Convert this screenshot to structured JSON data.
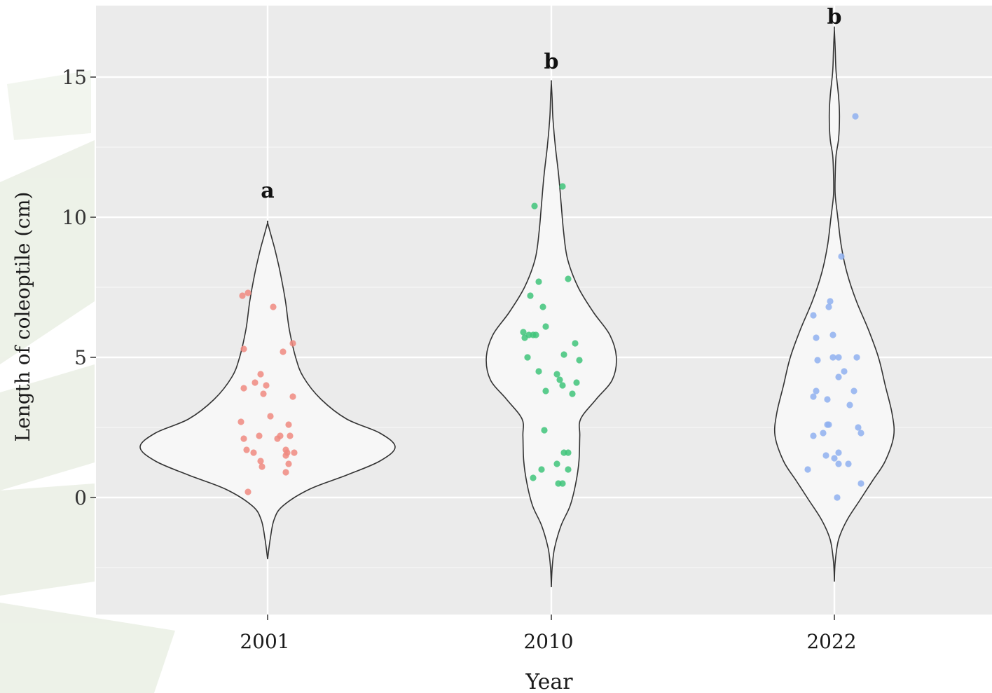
{
  "chart_data": {
    "type": "violin",
    "xlabel": "Year",
    "ylabel": "Length of coleoptile (cm)",
    "categories": [
      "2001",
      "2010",
      "2022"
    ],
    "yticks": [
      0,
      5,
      10,
      15
    ],
    "ylim": [
      -4.2,
      17.6
    ],
    "grid": true,
    "group_letters": [
      {
        "category": "2001",
        "label": "a",
        "y": 11.0
      },
      {
        "category": "2010",
        "label": "b",
        "y": 15.6
      },
      {
        "category": "2022",
        "label": "b",
        "y": 17.2
      }
    ],
    "colors": {
      "2001": "#f08a80",
      "2010": "#3fc47a",
      "2022": "#8fb0f0",
      "panel": "#ebebeb",
      "violin_fill": "#f7f7f7",
      "violin_line": "#333333",
      "grid": "#ffffff"
    },
    "violins": [
      {
        "category": "2001",
        "ymin": -2.2,
        "ymax": 9.8,
        "profile": [
          [
            -2.2,
            0.0
          ],
          [
            -1.5,
            0.02
          ],
          [
            -0.8,
            0.05
          ],
          [
            -0.3,
            0.12
          ],
          [
            0.3,
            0.33
          ],
          [
            0.8,
            0.62
          ],
          [
            1.3,
            0.88
          ],
          [
            1.8,
            1.0
          ],
          [
            2.3,
            0.88
          ],
          [
            2.8,
            0.62
          ],
          [
            3.5,
            0.42
          ],
          [
            4.3,
            0.28
          ],
          [
            5.0,
            0.22
          ],
          [
            6.0,
            0.17
          ],
          [
            7.0,
            0.14
          ],
          [
            8.0,
            0.1
          ],
          [
            8.8,
            0.06
          ],
          [
            9.3,
            0.03
          ],
          [
            9.8,
            0.0
          ]
        ]
      },
      {
        "category": "2010",
        "ymin": -3.2,
        "ymax": 14.8,
        "profile": [
          [
            -3.2,
            0.0
          ],
          [
            -2.5,
            0.01
          ],
          [
            -1.8,
            0.04
          ],
          [
            -1.0,
            0.12
          ],
          [
            -0.3,
            0.23
          ],
          [
            0.5,
            0.3
          ],
          [
            1.3,
            0.34
          ],
          [
            2.2,
            0.35
          ],
          [
            2.8,
            0.36
          ],
          [
            3.5,
            0.55
          ],
          [
            4.2,
            0.75
          ],
          [
            5.0,
            0.8
          ],
          [
            5.8,
            0.72
          ],
          [
            6.6,
            0.52
          ],
          [
            7.5,
            0.33
          ],
          [
            8.5,
            0.2
          ],
          [
            9.5,
            0.15
          ],
          [
            10.5,
            0.12
          ],
          [
            11.5,
            0.09
          ],
          [
            12.5,
            0.05
          ],
          [
            13.5,
            0.02
          ],
          [
            14.2,
            0.01
          ],
          [
            14.8,
            0.0
          ]
        ]
      },
      {
        "category": "2022",
        "ymin": -3.0,
        "ymax": 16.7,
        "profile": [
          [
            -3.0,
            0.0
          ],
          [
            -2.3,
            0.01
          ],
          [
            -1.5,
            0.05
          ],
          [
            -0.8,
            0.15
          ],
          [
            -0.1,
            0.3
          ],
          [
            0.6,
            0.45
          ],
          [
            1.3,
            0.6
          ],
          [
            2.2,
            0.7
          ],
          [
            3.0,
            0.68
          ],
          [
            4.0,
            0.6
          ],
          [
            5.0,
            0.52
          ],
          [
            6.0,
            0.4
          ],
          [
            7.0,
            0.26
          ],
          [
            8.0,
            0.15
          ],
          [
            9.0,
            0.08
          ],
          [
            10.0,
            0.04
          ],
          [
            10.8,
            0.01
          ],
          [
            11.5,
            0.01
          ],
          [
            12.2,
            0.02
          ],
          [
            12.8,
            0.05
          ],
          [
            13.6,
            0.06
          ],
          [
            14.3,
            0.05
          ],
          [
            15.2,
            0.02
          ],
          [
            16.0,
            0.01
          ],
          [
            16.7,
            0.0
          ]
        ]
      }
    ],
    "points": [
      {
        "category": "2001",
        "data": [
          [
            -0.18,
            7.2
          ],
          [
            -0.14,
            7.3
          ],
          [
            0.04,
            6.8
          ],
          [
            0.18,
            5.5
          ],
          [
            0.11,
            5.2
          ],
          [
            -0.17,
            5.3
          ],
          [
            -0.17,
            3.9
          ],
          [
            -0.09,
            4.1
          ],
          [
            -0.05,
            4.4
          ],
          [
            -0.03,
            3.7
          ],
          [
            -0.01,
            4.0
          ],
          [
            0.18,
            3.6
          ],
          [
            0.02,
            2.9
          ],
          [
            -0.19,
            2.7
          ],
          [
            -0.17,
            2.1
          ],
          [
            -0.15,
            1.7
          ],
          [
            -0.1,
            1.6
          ],
          [
            -0.06,
            2.2
          ],
          [
            -0.05,
            1.3
          ],
          [
            -0.04,
            1.1
          ],
          [
            0.07,
            2.1
          ],
          [
            0.09,
            2.2
          ],
          [
            0.15,
            2.6
          ],
          [
            0.16,
            2.2
          ],
          [
            0.13,
            1.7
          ],
          [
            0.14,
            1.6
          ],
          [
            0.13,
            1.5
          ],
          [
            0.15,
            1.2
          ],
          [
            0.19,
            1.6
          ],
          [
            0.13,
            0.9
          ],
          [
            -0.14,
            0.2
          ]
        ]
      },
      {
        "category": "2010",
        "data": [
          [
            -0.12,
            10.4
          ],
          [
            0.08,
            11.1
          ],
          [
            0.12,
            7.8
          ],
          [
            -0.09,
            7.7
          ],
          [
            -0.15,
            7.2
          ],
          [
            -0.06,
            6.8
          ],
          [
            -0.04,
            6.1
          ],
          [
            -0.2,
            5.9
          ],
          [
            -0.19,
            5.7
          ],
          [
            -0.16,
            5.8
          ],
          [
            -0.13,
            5.8
          ],
          [
            -0.11,
            5.8
          ],
          [
            -0.17,
            5.0
          ],
          [
            0.09,
            5.1
          ],
          [
            0.17,
            5.5
          ],
          [
            0.2,
            4.9
          ],
          [
            -0.09,
            4.5
          ],
          [
            0.04,
            4.4
          ],
          [
            0.06,
            4.2
          ],
          [
            0.08,
            4.0
          ],
          [
            0.15,
            3.7
          ],
          [
            0.18,
            4.1
          ],
          [
            -0.04,
            3.8
          ],
          [
            -0.05,
            2.4
          ],
          [
            0.09,
            1.6
          ],
          [
            0.12,
            1.6
          ],
          [
            0.04,
            1.2
          ],
          [
            -0.07,
            1.0
          ],
          [
            0.12,
            1.0
          ],
          [
            -0.13,
            0.7
          ],
          [
            0.05,
            0.5
          ],
          [
            0.08,
            0.5
          ]
        ]
      },
      {
        "category": "2022",
        "data": [
          [
            0.15,
            13.6
          ],
          [
            0.05,
            8.6
          ],
          [
            -0.03,
            7.0
          ],
          [
            -0.04,
            6.8
          ],
          [
            -0.15,
            6.5
          ],
          [
            -0.13,
            5.7
          ],
          [
            -0.01,
            5.8
          ],
          [
            0.16,
            5.0
          ],
          [
            -0.12,
            4.9
          ],
          [
            -0.01,
            5.0
          ],
          [
            0.03,
            5.0
          ],
          [
            0.07,
            4.5
          ],
          [
            0.03,
            4.3
          ],
          [
            0.14,
            3.8
          ],
          [
            -0.13,
            3.8
          ],
          [
            -0.15,
            3.6
          ],
          [
            -0.05,
            3.5
          ],
          [
            0.11,
            3.3
          ],
          [
            -0.05,
            2.6
          ],
          [
            -0.04,
            2.6
          ],
          [
            0.17,
            2.5
          ],
          [
            0.19,
            2.3
          ],
          [
            -0.08,
            2.3
          ],
          [
            -0.15,
            2.2
          ],
          [
            -0.06,
            1.5
          ],
          [
            0.03,
            1.6
          ],
          [
            0.0,
            1.4
          ],
          [
            0.03,
            1.2
          ],
          [
            0.1,
            1.2
          ],
          [
            -0.19,
            1.0
          ],
          [
            0.19,
            0.5
          ],
          [
            0.02,
            0.0
          ]
        ]
      }
    ]
  }
}
